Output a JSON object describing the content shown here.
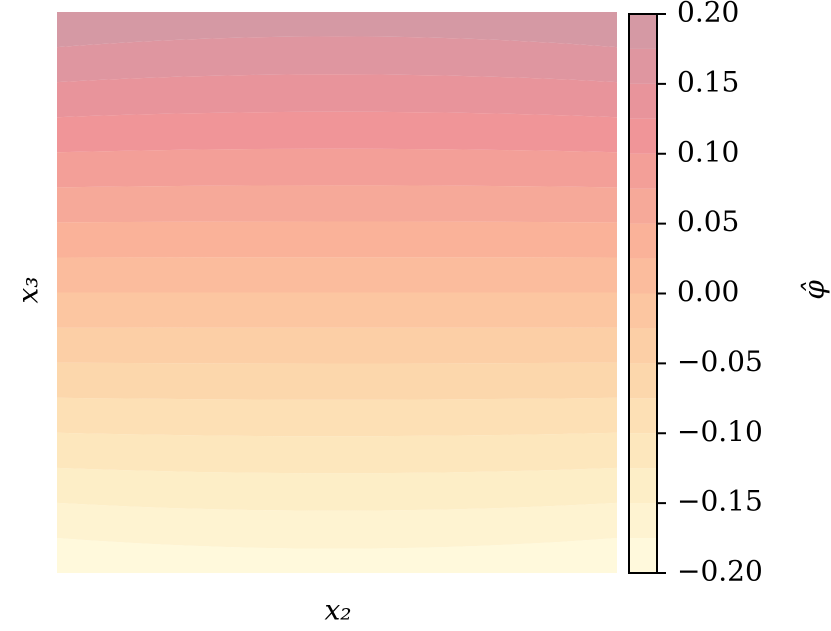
{
  "chart_data": {
    "type": "contour",
    "xlabel": "x₂",
    "ylabel": "x₃",
    "colorbar_label": "φ̂",
    "levels": [
      -0.2,
      -0.175,
      -0.15,
      -0.125,
      -0.1,
      -0.075,
      -0.05,
      -0.025,
      0,
      0.025,
      0.05,
      0.075,
      0.1,
      0.125,
      0.15,
      0.175,
      0.2
    ],
    "colormap": [
      "#fffbdc",
      "#fde6b4",
      "#fcc896",
      "#f9a487",
      "#ec7f86",
      "#c98896"
    ],
    "opacity": 0.85,
    "clim": [
      -0.2,
      0.2
    ],
    "cticks": [
      {
        "value": -0.2,
        "label": "−0.20"
      },
      {
        "value": -0.15,
        "label": "−0.15"
      },
      {
        "value": -0.1,
        "label": "−0.10"
      },
      {
        "value": -0.05,
        "label": "−0.05"
      },
      {
        "value": 0,
        "label": "0.00"
      },
      {
        "value": 0.05,
        "label": "0.05"
      },
      {
        "value": 0.1,
        "label": "0.10"
      },
      {
        "value": 0.15,
        "label": "0.15"
      },
      {
        "value": 0.2,
        "label": "0.20"
      }
    ]
  }
}
